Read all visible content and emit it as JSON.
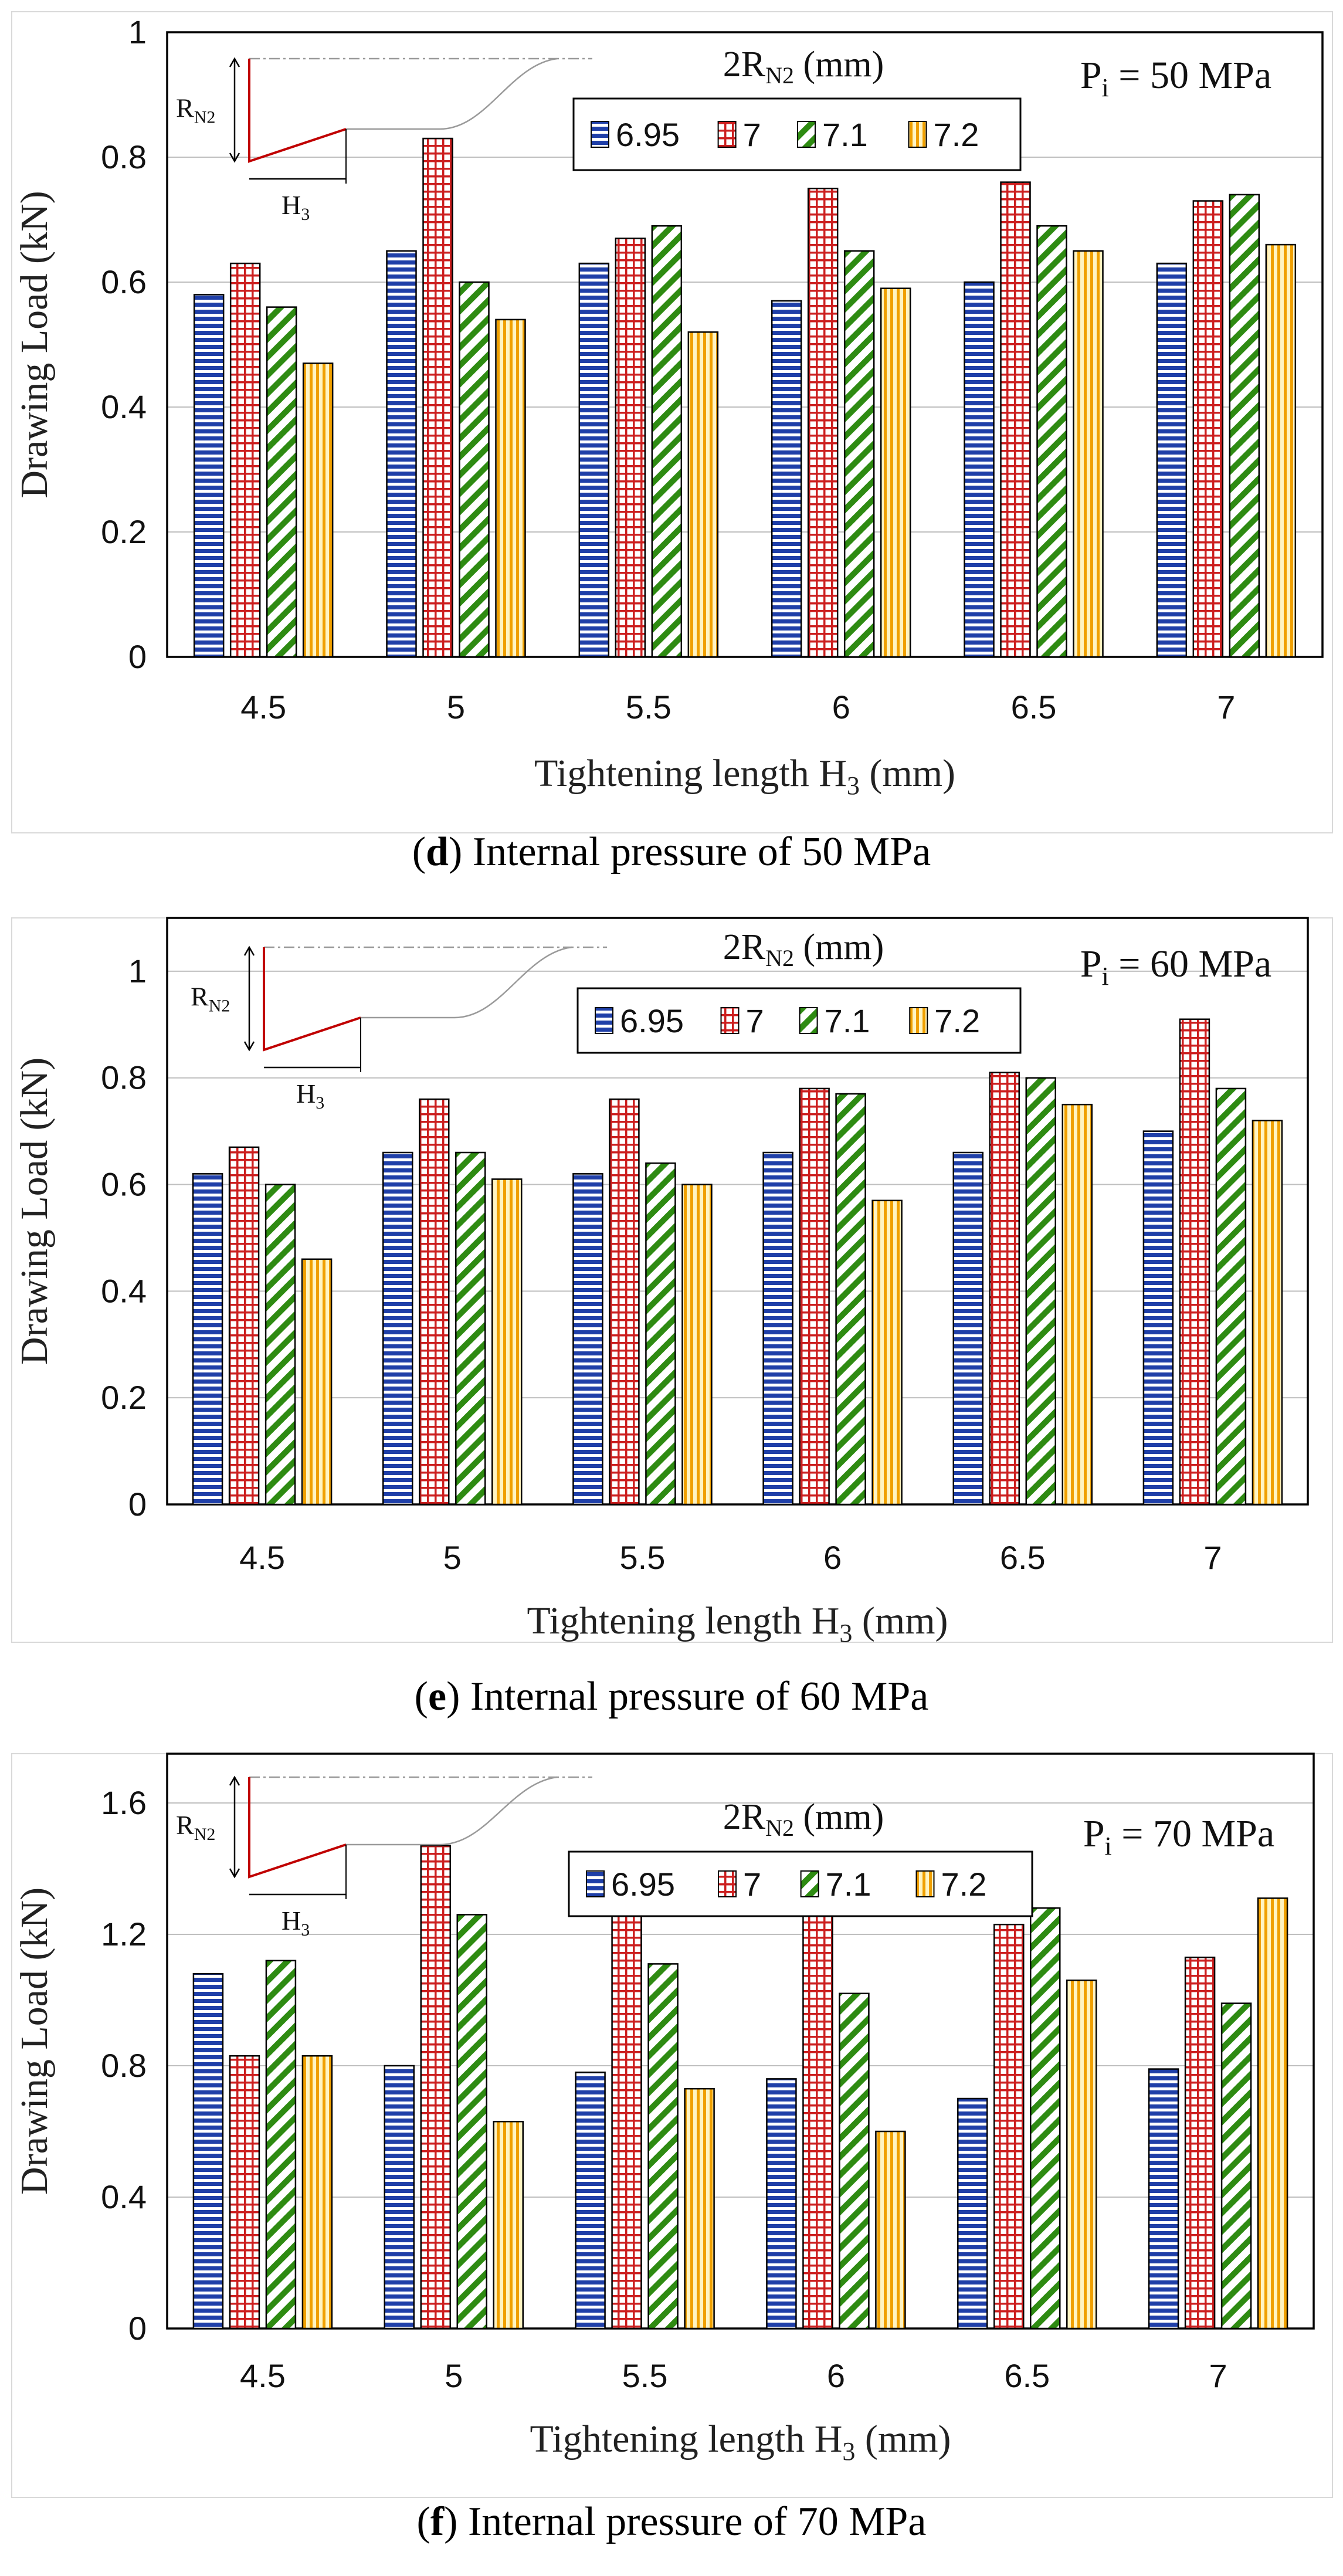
{
  "colors": {
    "series_6_95": "#1f3fa8",
    "series_7": "#cc1f1f",
    "series_7_1": "#2e8b12",
    "series_7_2": "#f0a000",
    "grid": "#bfbfbf",
    "inset_red": "#c00000"
  },
  "chart_data": [
    {
      "type": "bar",
      "panel_letter": "d",
      "caption_text": " Internal pressure of 50 MPa",
      "xlabel_main": "Tightening length H",
      "xlabel_sub": "3",
      "xlabel_unit": " (mm)",
      "ylabel": "Drawing Load (kN)",
      "pressure_main": "P",
      "pressure_sub": "i",
      "pressure_value": " = 50 MPa",
      "legend_title_main": "2R",
      "legend_title_sub": "N2",
      "legend_title_unit": " (mm)",
      "legend_location": "top-center",
      "inset_r_main": "R",
      "inset_r_sub": "N2",
      "inset_h_main": "H",
      "inset_h_sub": "3",
      "categories": [
        "4.5",
        "5",
        "5.5",
        "6",
        "6.5",
        "7"
      ],
      "ylim": [
        0,
        1
      ],
      "yticks": [
        "0",
        "0.2",
        "0.4",
        "0.6",
        "0.8",
        "1"
      ],
      "ytick_values": [
        0,
        0.2,
        0.4,
        0.6,
        0.8,
        1.0
      ],
      "grid": true,
      "series": [
        {
          "name": "6.95",
          "values": [
            0.58,
            0.65,
            0.63,
            0.57,
            0.6,
            0.63
          ]
        },
        {
          "name": "7",
          "values": [
            0.63,
            0.83,
            0.67,
            0.75,
            0.76,
            0.73
          ]
        },
        {
          "name": "7.1",
          "values": [
            0.56,
            0.6,
            0.69,
            0.65,
            0.69,
            0.74
          ]
        },
        {
          "name": "7.2",
          "values": [
            0.47,
            0.54,
            0.52,
            0.59,
            0.65,
            0.66
          ]
        }
      ]
    },
    {
      "type": "bar",
      "panel_letter": "e",
      "caption_text": " Internal pressure of 60 MPa",
      "xlabel_main": "Tightening length H",
      "xlabel_sub": "3",
      "xlabel_unit": " (mm)",
      "ylabel": "Drawing Load (kN)",
      "pressure_main": "P",
      "pressure_sub": "i",
      "pressure_value": " = 60 MPa",
      "legend_title_main": "2R",
      "legend_title_sub": "N2",
      "legend_title_unit": " (mm)",
      "legend_location": "top-center",
      "inset_r_main": "R",
      "inset_r_sub": "N2",
      "inset_h_main": "H",
      "inset_h_sub": "3",
      "categories": [
        "4.5",
        "5",
        "5.5",
        "6",
        "6.5",
        "7"
      ],
      "ylim": [
        0,
        1.1
      ],
      "yticks": [
        "0",
        "0.2",
        "0.4",
        "0.6",
        "0.8",
        "1"
      ],
      "ytick_values": [
        0,
        0.2,
        0.4,
        0.6,
        0.8,
        1.0
      ],
      "grid": true,
      "series": [
        {
          "name": "6.95",
          "values": [
            0.62,
            0.66,
            0.62,
            0.66,
            0.66,
            0.7
          ]
        },
        {
          "name": "7",
          "values": [
            0.67,
            0.76,
            0.76,
            0.78,
            0.81,
            0.91
          ]
        },
        {
          "name": "7.1",
          "values": [
            0.6,
            0.66,
            0.64,
            0.77,
            0.8,
            0.78
          ]
        },
        {
          "name": "7.2",
          "values": [
            0.46,
            0.61,
            0.6,
            0.57,
            0.75,
            0.72
          ]
        }
      ]
    },
    {
      "type": "bar",
      "panel_letter": "f",
      "caption_text": " Internal pressure of 70 MPa",
      "xlabel_main": "Tightening length H",
      "xlabel_sub": "3",
      "xlabel_unit": " (mm)",
      "ylabel": "Drawing Load (kN)",
      "pressure_main": "P",
      "pressure_sub": "i",
      "pressure_value": " = 70 MPa",
      "legend_title_main": "2R",
      "legend_title_sub": "N2",
      "legend_title_unit": " (mm)",
      "legend_location": "top-center",
      "inset_r_main": "R",
      "inset_r_sub": "N2",
      "inset_h_main": "H",
      "inset_h_sub": "3",
      "categories": [
        "4.5",
        "5",
        "5.5",
        "6",
        "6.5",
        "7"
      ],
      "ylim": [
        0,
        1.75
      ],
      "yticks": [
        "0",
        "0.4",
        "0.8",
        "1.2",
        "1.6"
      ],
      "ytick_values": [
        0,
        0.4,
        0.8,
        1.2,
        1.6
      ],
      "grid": true,
      "series": [
        {
          "name": "6.95",
          "values": [
            1.08,
            0.8,
            0.78,
            0.76,
            0.7,
            0.79
          ]
        },
        {
          "name": "7",
          "values": [
            0.83,
            1.47,
            1.26,
            1.3,
            1.23,
            1.13
          ]
        },
        {
          "name": "7.1",
          "values": [
            1.12,
            1.26,
            1.11,
            1.02,
            1.28,
            0.99
          ]
        },
        {
          "name": "7.2",
          "values": [
            0.83,
            0.63,
            0.73,
            0.6,
            1.06,
            1.31
          ]
        }
      ]
    }
  ]
}
